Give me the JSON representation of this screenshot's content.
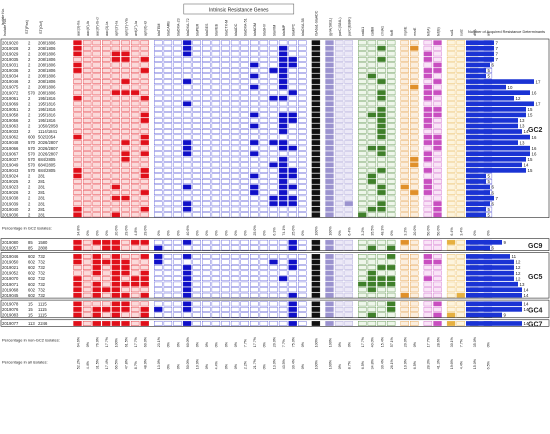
{
  "chart_data": {
    "type": "heatmap",
    "title": "Intrinsic Resistance Genes",
    "row_header_labels": [
      "Isolate No.",
      "ST(Pas)",
      "ST(Oxf)"
    ],
    "bar_axis_label": "Number of Acquired Resistance Determinants",
    "column_labels": [
      "aac(3)-IIa",
      "aac(6')-Ib",
      "aac(6')-Ib-cr",
      "aac(3)-Ia",
      "aph(3')-Ia",
      "aph(3')-VIa",
      "ant(2'')-Ia",
      "aph(6)-Id",
      "blaTEM",
      "blaCARB",
      "blaOXA-23",
      "blaOXA-72",
      "blaPER",
      "blaGES",
      "blaVEB",
      "blaCTX-M",
      "blaADC",
      "blaOXA-51",
      "blaNDM",
      "blaSHV",
      "blaVIM",
      "blaIMP",
      "blaKPC",
      "blaOXA-58",
      "ISAba1-blaADC",
      "gyrA(S81L)",
      "parC(S84L)",
      "parC(E88K)",
      "catA1",
      "catB8",
      "cmlA1",
      "floR",
      "mphE",
      "msrE",
      "tet(A)",
      "tet(B)",
      "sul1",
      "sul2",
      "dfrA",
      "arr"
    ],
    "column_group_colors": {
      "aminoglycoside": "#e0101a",
      "beta_lactam": "#1010c8",
      "isaba": "#111111",
      "fluoroquinolone": "#9b93cf",
      "phenicol": "#3f7f2a",
      "macrolide": "#e0902a",
      "tetracycline": "#c84fc0",
      "sulfonamide": "#e6b040",
      "trimethoprim": "#8a8a8a",
      "rifampicin": "#000000",
      "bar": "#1a33d4"
    },
    "groups": [
      {
        "name": "GC2",
        "rows": [
          {
            "id": "2019020",
            "st_pas": "2",
            "st_oxf": "208/1806",
            "n": 7
          },
          {
            "id": "2019028",
            "st_pas": "2",
            "st_oxf": "208/1806",
            "n": 7
          },
          {
            "id": "2019029",
            "st_pas": "2",
            "st_oxf": "208/1806",
            "n": 7
          },
          {
            "id": "2019035",
            "st_pas": "2",
            "st_oxf": "208/1806",
            "n": 7
          },
          {
            "id": "2019031",
            "st_pas": "2",
            "st_oxf": "208/1806",
            "n": 6
          },
          {
            "id": "2019036",
            "st_pas": "2",
            "st_oxf": "208/1806",
            "n": 5
          },
          {
            "id": "2019034",
            "st_pas": "2",
            "st_oxf": "208/1806",
            "n": 5
          },
          {
            "id": "2019046",
            "st_pas": "2",
            "st_oxf": "208/1806",
            "n": 17
          },
          {
            "id": "2019075",
            "st_pas": "2",
            "st_oxf": "208/1806",
            "n": 10
          },
          {
            "id": "2019072",
            "st_pas": "570",
            "st_oxf": "208/1806",
            "n": 16
          },
          {
            "id": "2019061",
            "st_pas": "2",
            "st_oxf": "195/1816",
            "n": 12
          },
          {
            "id": "2019069",
            "st_pas": "2",
            "st_oxf": "195/1816",
            "n": 17
          },
          {
            "id": "2019051",
            "st_pas": "2",
            "st_oxf": "195/1816",
            "n": 15
          },
          {
            "id": "2019058",
            "st_pas": "2",
            "st_oxf": "195/1816",
            "n": 15
          },
          {
            "id": "2019056",
            "st_pas": "2",
            "st_oxf": "195/1816",
            "n": 13
          },
          {
            "id": "2019063",
            "st_pas": "2",
            "st_oxf": "1050/2058",
            "n": 13
          },
          {
            "id": "2019033",
            "st_pas": "2",
            "st_oxf": "1114/1841",
            "n": 14
          },
          {
            "id": "2019062",
            "st_pas": "600",
            "st_oxf": "502/2054",
            "n": 16
          },
          {
            "id": "2019048",
            "st_pas": "570",
            "st_oxf": "2026/2807",
            "n": 13
          },
          {
            "id": "2019066",
            "st_pas": "570",
            "st_oxf": "2026/2807",
            "n": 16
          },
          {
            "id": "2019067",
            "st_pas": "570",
            "st_oxf": "2026/2807",
            "n": 16
          },
          {
            "id": "2019037",
            "st_pas": "570",
            "st_oxf": "684/2805",
            "n": 15
          },
          {
            "id": "2019049",
            "st_pas": "570",
            "st_oxf": "684/2805",
            "n": 14
          },
          {
            "id": "2019043",
            "st_pas": "570",
            "st_oxf": "684/2805",
            "n": 15
          },
          {
            "id": "2019024",
            "st_pas": "2",
            "st_oxf": "281",
            "n": 5
          },
          {
            "id": "2019025",
            "st_pas": "2",
            "st_oxf": "281",
            "n": 5
          },
          {
            "id": "2019023",
            "st_pas": "2",
            "st_oxf": "281",
            "n": 6
          },
          {
            "id": "2019026",
            "st_pas": "2",
            "st_oxf": "281",
            "n": 6
          },
          {
            "id": "2019038",
            "st_pas": "2",
            "st_oxf": "281",
            "n": 7
          },
          {
            "id": "2019039",
            "st_pas": "2",
            "st_oxf": "281",
            "n": 6
          },
          {
            "id": "2019040",
            "st_pas": "2",
            "st_oxf": "281",
            "n": 5
          },
          {
            "id": "2019036",
            "st_pas": "2",
            "st_oxf": "281",
            "n": 5
          }
        ],
        "percent_label": "Percentage in GC2 isolates:",
        "percentages": [
          "34.8%",
          "0%",
          "0%",
          "0%",
          "20.0%",
          "29.0%",
          "4.8%",
          "29.0%",
          "0%",
          "0%",
          "0%",
          "40.6%",
          "0%",
          "0%",
          "0%",
          "0%",
          "0%",
          "0%",
          "25.0%",
          "0%",
          "6.3%",
          "74.1%",
          "25.0%",
          "0%",
          "100%",
          "100%",
          "0%",
          "6.4%",
          "3.2%",
          "35.5%",
          "48.3%",
          "0%",
          "3.2%",
          "20.0%",
          "50.0%",
          "50.0%",
          "6.4%",
          "3.4%",
          "0%",
          "0%"
        ]
      },
      {
        "name": "GC9",
        "rows": [
          {
            "id": "2019080",
            "st_pas": "85",
            "st_oxf": "1580",
            "n": 9
          },
          {
            "id": "2019057",
            "st_pas": "85",
            "st_oxf": "2808",
            "n": 6
          }
        ]
      },
      {
        "name": "GC5",
        "rows": [
          {
            "id": "2019046",
            "st_pas": "602",
            "st_oxf": "732",
            "n": 11
          },
          {
            "id": "2019050",
            "st_pas": "602",
            "st_oxf": "732",
            "n": 12
          },
          {
            "id": "2019021",
            "st_pas": "602",
            "st_oxf": "732",
            "n": 12
          },
          {
            "id": "2019052",
            "st_pas": "602",
            "st_oxf": "732",
            "n": 12
          },
          {
            "id": "2019070",
            "st_pas": "602",
            "st_oxf": "732",
            "n": 12
          },
          {
            "id": "2019071",
            "st_pas": "602",
            "st_oxf": "732",
            "n": 13
          },
          {
            "id": "2019068",
            "st_pas": "602",
            "st_oxf": "732",
            "n": 14
          },
          {
            "id": "2019045",
            "st_pas": "602",
            "st_oxf": "732",
            "n": 14
          }
        ]
      },
      {
        "name": "GC4",
        "rows": [
          {
            "id": "2019078",
            "st_pas": "15",
            "st_oxf": "1115",
            "n": 14
          },
          {
            "id": "2019076",
            "st_pas": "15",
            "st_oxf": "1115",
            "n": 14
          },
          {
            "id": "2019083",
            "st_pas": "15",
            "st_oxf": "1115",
            "n": 9
          }
        ]
      },
      {
        "name": "GC7",
        "rows": [
          {
            "id": "2019077",
            "st_pas": "113",
            "st_oxf": "2246",
            "n": 14
          }
        ]
      }
    ],
    "footer_rows": [
      {
        "label": "Percentage in non-GC2 isolates:",
        "percentages": [
          "64.6%",
          "0%",
          "76.9%",
          "17.7%",
          "100%",
          "61.5%",
          "17.7%",
          "60.0%",
          "23.1%",
          "0%",
          "0%",
          "60.0%",
          "0%",
          "0%",
          "0%",
          "0%",
          "0%",
          "7.7%",
          "17.7%",
          "0%",
          "20.0%",
          "7.7%",
          "75.0%",
          "0%",
          "100%",
          "100%",
          "0%",
          "0%",
          "17.7%",
          "40.0%",
          "15.4%",
          "57.1%",
          "20.0%",
          "0%",
          "17.7%",
          "28.6%",
          "30.1%",
          "7.7%",
          "35.0%",
          "0%"
        ]
      },
      {
        "label": "Percentage in all isolates:",
        "percentages": [
          "52.2%",
          "4.4%",
          "31.5%",
          "17.4%",
          "66.5%",
          "47.8%",
          "8.7%",
          "48.9%",
          "13.0%",
          "0%",
          "0%",
          "50.0%",
          "10.9%",
          "0%",
          "4.4%",
          "0%",
          "0%",
          "2.2%",
          "21.7%",
          "0%",
          "13.0%",
          "43.5%",
          "30.4%",
          "0%",
          "100%",
          "100%",
          "0%",
          "8.7%",
          "6.5%",
          "34.8%",
          "30.4%",
          "26.1%",
          "10.9%",
          "6.5%",
          "28.3%",
          "41.3%",
          "19.6%",
          "4.4%",
          "15.0%",
          "6.5%"
        ]
      }
    ]
  }
}
